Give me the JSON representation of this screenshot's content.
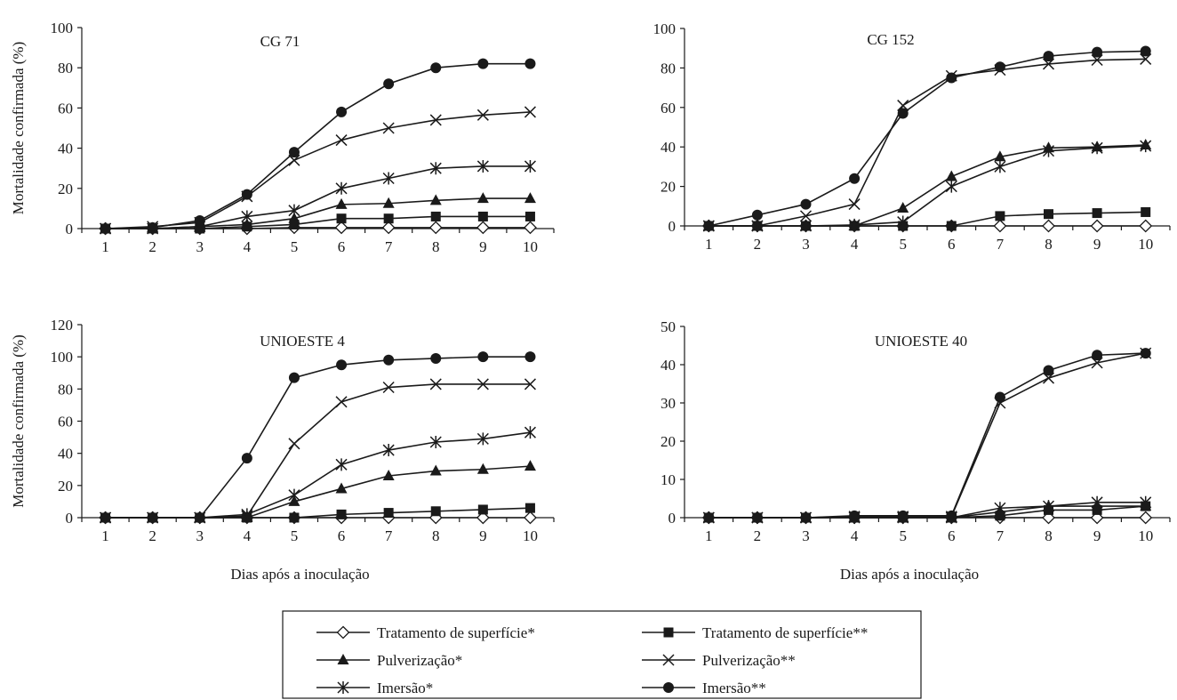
{
  "chart_data": [
    {
      "type": "line",
      "title": "CG 71",
      "ylabel": "Mortalidade confirmada (%)",
      "xlabel": "",
      "x": [
        1,
        2,
        3,
        4,
        5,
        6,
        7,
        8,
        9,
        10
      ],
      "ylim": [
        0,
        100
      ],
      "yticks": [
        0,
        20,
        40,
        60,
        80,
        100
      ],
      "series": [
        {
          "name": "Tratamento de superfície*",
          "marker": "diamond-open",
          "values": [
            0,
            0,
            0,
            0,
            0.5,
            0.5,
            0.5,
            0.5,
            0.5,
            0.5
          ]
        },
        {
          "name": "Tratamento de superfície**",
          "marker": "square",
          "values": [
            0,
            0,
            0,
            1,
            2,
            5,
            5,
            6,
            6,
            6
          ]
        },
        {
          "name": "Pulverização*",
          "marker": "triangle",
          "values": [
            0,
            0,
            1,
            2,
            5,
            12,
            12.5,
            14,
            15,
            15
          ]
        },
        {
          "name": "Pulverização**",
          "marker": "x",
          "values": [
            0,
            1,
            3,
            16,
            34,
            44,
            50,
            54,
            56.5,
            58
          ]
        },
        {
          "name": "Imersão*",
          "marker": "star",
          "values": [
            0,
            0,
            1,
            6,
            9,
            20,
            25,
            30,
            31,
            31
          ]
        },
        {
          "name": "Imersão**",
          "marker": "circle",
          "values": [
            0,
            0.5,
            4,
            17,
            38,
            58,
            72,
            80,
            82,
            82
          ]
        }
      ]
    },
    {
      "type": "line",
      "title": "CG 152",
      "ylabel": "",
      "xlabel": "",
      "x": [
        1,
        2,
        3,
        4,
        5,
        6,
        7,
        8,
        9,
        10
      ],
      "ylim": [
        0,
        100
      ],
      "yticks": [
        0,
        20,
        40,
        60,
        80,
        100
      ],
      "series": [
        {
          "name": "Tratamento de superfície*",
          "marker": "diamond-open",
          "values": [
            0,
            0,
            0,
            0,
            0,
            0,
            0,
            0,
            0,
            0
          ]
        },
        {
          "name": "Tratamento de superfície**",
          "marker": "square",
          "values": [
            0,
            0,
            0,
            0,
            0,
            0,
            5,
            6,
            6.5,
            7
          ]
        },
        {
          "name": "Pulverização*",
          "marker": "triangle",
          "values": [
            0,
            0,
            0,
            0,
            9,
            25,
            35,
            39.5,
            40,
            41
          ]
        },
        {
          "name": "Pulverização**",
          "marker": "x",
          "values": [
            0,
            0,
            5,
            11,
            61,
            76,
            79,
            82,
            84,
            84.5
          ]
        },
        {
          "name": "Imersão*",
          "marker": "star",
          "values": [
            0,
            0,
            0,
            0.5,
            2,
            20,
            30,
            38,
            39.5,
            40.5
          ]
        },
        {
          "name": "Imersão**",
          "marker": "circle",
          "values": [
            0,
            5.5,
            11,
            24,
            57,
            75,
            80.5,
            86,
            88,
            88.5
          ]
        }
      ]
    },
    {
      "type": "line",
      "title": "UNIOESTE 4",
      "ylabel": "Mortalidade confirmada (%)",
      "xlabel": "Dias após a inoculação",
      "x": [
        1,
        2,
        3,
        4,
        5,
        6,
        7,
        8,
        9,
        10
      ],
      "ylim": [
        0,
        120
      ],
      "yticks": [
        0,
        20,
        40,
        60,
        80,
        100,
        120
      ],
      "series": [
        {
          "name": "Tratamento de superfície*",
          "marker": "diamond-open",
          "values": [
            0,
            0,
            0,
            0,
            0,
            0,
            0,
            0,
            0,
            0
          ]
        },
        {
          "name": "Tratamento de superfície**",
          "marker": "square",
          "values": [
            0,
            0,
            0,
            0,
            0,
            2,
            3,
            4,
            5,
            6
          ]
        },
        {
          "name": "Pulverização*",
          "marker": "triangle",
          "values": [
            0,
            0,
            0,
            0,
            10,
            18,
            26,
            29,
            30,
            32
          ]
        },
        {
          "name": "Pulverização**",
          "marker": "x",
          "values": [
            0,
            0,
            0,
            1,
            46,
            72,
            81,
            83,
            83,
            83
          ]
        },
        {
          "name": "Imersão*",
          "marker": "star",
          "values": [
            0,
            0,
            0,
            2,
            14,
            33,
            42,
            47,
            49,
            53
          ]
        },
        {
          "name": "Imersão**",
          "marker": "circle",
          "values": [
            0,
            0,
            0,
            37,
            87,
            95,
            98,
            99,
            100,
            100
          ]
        }
      ]
    },
    {
      "type": "line",
      "title": "UNIOESTE 40",
      "ylabel": "",
      "xlabel": "Dias após a inoculação",
      "x": [
        1,
        2,
        3,
        4,
        5,
        6,
        7,
        8,
        9,
        10
      ],
      "ylim": [
        0,
        50
      ],
      "yticks": [
        0,
        10,
        20,
        30,
        40,
        50
      ],
      "series": [
        {
          "name": "Tratamento de superfície*",
          "marker": "diamond-open",
          "values": [
            0,
            0,
            0,
            0,
            0,
            0,
            0,
            0,
            0,
            0
          ]
        },
        {
          "name": "Tratamento de superfície**",
          "marker": "square",
          "values": [
            0,
            0,
            0,
            0,
            0,
            0,
            0.5,
            2,
            2,
            3
          ]
        },
        {
          "name": "Pulverização*",
          "marker": "triangle",
          "values": [
            0,
            0,
            0,
            0,
            0,
            0,
            1.5,
            3,
            3,
            3
          ]
        },
        {
          "name": "Pulverização**",
          "marker": "x",
          "values": [
            0,
            0,
            0,
            0.3,
            0.3,
            0.3,
            30,
            36.5,
            40.5,
            43
          ]
        },
        {
          "name": "Imersão*",
          "marker": "star",
          "values": [
            0,
            0,
            0,
            0,
            0,
            0,
            2.5,
            3,
            4,
            4
          ]
        },
        {
          "name": "Imersão**",
          "marker": "circle",
          "values": [
            0,
            0,
            0,
            0.5,
            0.5,
            0.5,
            31.5,
            38.5,
            42.5,
            43
          ]
        }
      ]
    }
  ],
  "legend": {
    "items": [
      {
        "label": "Tratamento de superfície*",
        "marker": "diamond-open"
      },
      {
        "label": "Tratamento de superfície**",
        "marker": "square"
      },
      {
        "label": "Pulverização*",
        "marker": "triangle"
      },
      {
        "label": "Pulverização**",
        "marker": "x"
      },
      {
        "label": "Imersão*",
        "marker": "star"
      },
      {
        "label": "Imersão**",
        "marker": "circle"
      }
    ]
  }
}
